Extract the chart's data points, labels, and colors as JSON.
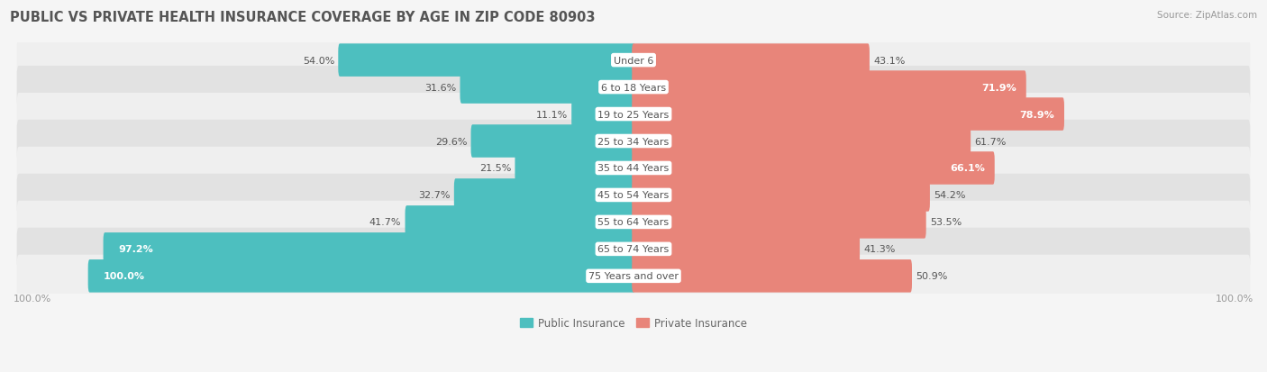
{
  "title": "PUBLIC VS PRIVATE HEALTH INSURANCE COVERAGE BY AGE IN ZIP CODE 80903",
  "source": "Source: ZipAtlas.com",
  "categories": [
    "Under 6",
    "6 to 18 Years",
    "19 to 25 Years",
    "25 to 34 Years",
    "35 to 44 Years",
    "45 to 54 Years",
    "55 to 64 Years",
    "65 to 74 Years",
    "75 Years and over"
  ],
  "public_values": [
    54.0,
    31.6,
    11.1,
    29.6,
    21.5,
    32.7,
    41.7,
    97.2,
    100.0
  ],
  "private_values": [
    43.1,
    71.9,
    78.9,
    61.7,
    66.1,
    54.2,
    53.5,
    41.3,
    50.9
  ],
  "public_color": "#4DBFBF",
  "private_color": "#E8857A",
  "row_bg_light": "#EFEFEF",
  "row_bg_dark": "#E2E2E2",
  "title_fontsize": 10.5,
  "label_fontsize": 8,
  "value_fontsize": 8,
  "legend_fontsize": 8.5,
  "axis_label_fontsize": 8,
  "max_value": 100.0,
  "fig_bg": "#F5F5F5"
}
